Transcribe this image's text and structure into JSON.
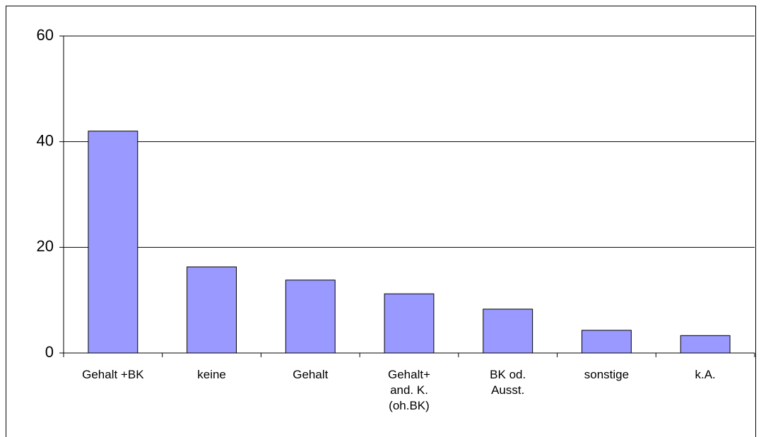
{
  "chart_data": {
    "type": "bar",
    "categories": [
      "Gehalt +BK",
      "keine",
      "Gehalt",
      "Gehalt+\nand. K.\n(oh.BK)",
      "BK od.\nAusst.",
      "sonstige",
      "k.A."
    ],
    "values": [
      42,
      16.3,
      13.8,
      11.2,
      8.3,
      4.3,
      3.3
    ],
    "color": "#9999ff",
    "ylim": [
      0,
      60
    ],
    "yticks": [
      0,
      20,
      40,
      60
    ],
    "grid": true
  }
}
